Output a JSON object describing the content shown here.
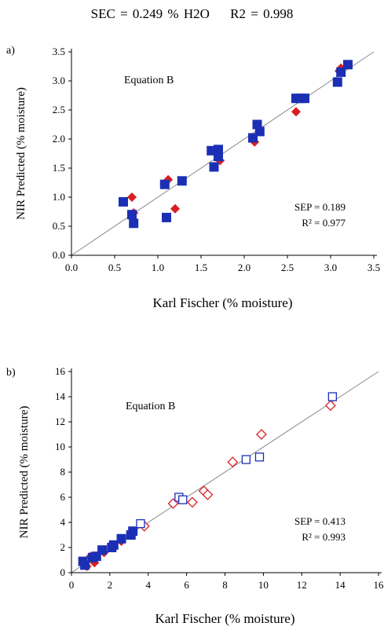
{
  "header": {
    "sec_text": "SEC = 0.249 % H2O",
    "r2_text": "R2 = 0.998"
  },
  "colors": {
    "red": "#d91f1f",
    "blue": "#1b2fb5",
    "line": "#8a8a8a",
    "axis": "#000000"
  },
  "chart_data": [
    {
      "type": "scatter",
      "panel_label": "a)",
      "annotation": "Equation B",
      "stats": {
        "sep": "SEP = 0.189",
        "r2": "R² = 0.977"
      },
      "xlabel": "Karl Fischer (% moisture)",
      "ylabel": "NIR Predicted (% moisture)",
      "xlim": [
        0,
        3.5
      ],
      "ylim": [
        0,
        3.5
      ],
      "xticks": [
        "0.0",
        "0.5",
        "1.0",
        "1.5",
        "2.0",
        "2.5",
        "3.0",
        "3.5"
      ],
      "yticks": [
        "0.0",
        "0.5",
        "1.0",
        "1.5",
        "2.0",
        "2.5",
        "3.0",
        "3.5"
      ],
      "identity_line": true,
      "series": [
        {
          "marker": "filled-diamond",
          "color": "red",
          "points": [
            [
              0.7,
              1.0
            ],
            [
              0.72,
              0.73
            ],
            [
              1.12,
              1.3
            ],
            [
              1.2,
              0.8
            ],
            [
              1.72,
              1.63
            ],
            [
              2.12,
              1.95
            ],
            [
              2.6,
              2.47
            ],
            [
              3.1,
              3.17
            ],
            [
              3.12,
              3.22
            ]
          ]
        },
        {
          "marker": "filled-square",
          "color": "blue",
          "points": [
            [
              0.6,
              0.92
            ],
            [
              0.7,
              0.7
            ],
            [
              0.72,
              0.55
            ],
            [
              1.08,
              1.22
            ],
            [
              1.1,
              0.65
            ],
            [
              1.28,
              1.28
            ],
            [
              1.62,
              1.8
            ],
            [
              1.65,
              1.52
            ],
            [
              1.7,
              1.82
            ],
            [
              1.7,
              1.7
            ],
            [
              2.1,
              2.02
            ],
            [
              2.15,
              2.25
            ],
            [
              2.18,
              2.13
            ],
            [
              2.6,
              2.7
            ],
            [
              2.65,
              2.7
            ],
            [
              2.7,
              2.7
            ],
            [
              3.08,
              2.98
            ],
            [
              3.12,
              3.15
            ],
            [
              3.2,
              3.28
            ]
          ]
        }
      ]
    },
    {
      "type": "scatter",
      "panel_label": "b)",
      "annotation": "Equation B",
      "stats": {
        "sep": "SEP = 0.413",
        "r2": "R² = 0.993"
      },
      "xlabel": "Karl Fischer (% moisture)",
      "ylabel": "NIR Predicted (% moisture)",
      "xlim": [
        0,
        16
      ],
      "ylim": [
        0,
        16
      ],
      "xticks": [
        "0",
        "2",
        "4",
        "6",
        "8",
        "10",
        "12",
        "14",
        "16"
      ],
      "yticks": [
        "0",
        "2",
        "4",
        "6",
        "8",
        "10",
        "12",
        "14",
        "16"
      ],
      "identity_line": true,
      "series": [
        {
          "marker": "filled-diamond",
          "color": "red",
          "points": [
            [
              0.6,
              0.8
            ],
            [
              0.8,
              0.5
            ],
            [
              1.0,
              1.3
            ],
            [
              1.2,
              0.8
            ],
            [
              1.7,
              1.6
            ],
            [
              2.1,
              2.0
            ],
            [
              2.6,
              2.5
            ],
            [
              3.1,
              3.2
            ]
          ]
        },
        {
          "marker": "filled-square",
          "color": "blue",
          "points": [
            [
              0.6,
              0.9
            ],
            [
              0.7,
              0.6
            ],
            [
              1.1,
              1.2
            ],
            [
              1.3,
              1.3
            ],
            [
              1.6,
              1.8
            ],
            [
              2.1,
              2.0
            ],
            [
              2.2,
              2.2
            ],
            [
              2.6,
              2.7
            ],
            [
              3.1,
              3.0
            ],
            [
              3.2,
              3.3
            ]
          ]
        },
        {
          "marker": "open-diamond",
          "color": "red",
          "points": [
            [
              3.8,
              3.7
            ],
            [
              5.3,
              5.5
            ],
            [
              6.3,
              5.6
            ],
            [
              6.9,
              6.5
            ],
            [
              7.1,
              6.2
            ],
            [
              8.4,
              8.8
            ],
            [
              9.9,
              11.0
            ],
            [
              13.5,
              13.3
            ]
          ]
        },
        {
          "marker": "open-square",
          "color": "blue",
          "points": [
            [
              3.6,
              3.9
            ],
            [
              5.6,
              6.0
            ],
            [
              5.8,
              5.8
            ],
            [
              9.1,
              9.0
            ],
            [
              9.8,
              9.2
            ],
            [
              13.6,
              14.0
            ]
          ]
        }
      ]
    }
  ]
}
